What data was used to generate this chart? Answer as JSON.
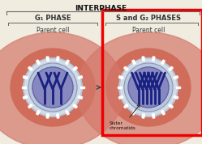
{
  "title": "INTERPHASE",
  "left_phase_title": "G₁ PHASE",
  "right_phase_title": "S and G₂ PHASES",
  "left_label": "Parent cell",
  "right_label": "Parent cell",
  "annotation_text": "Sister\nchromatids",
  "bg_color": "#f0ece0",
  "cell_outer_color": "#c85535",
  "cell_outer_edge_color": "#a03020",
  "cell_mid_color": "#d4786a",
  "cell_ring_color": "#b8c4d4",
  "cell_ring_fill": "#d0dce8",
  "cell_inner_fill": "#c0cce0",
  "nucleus_color": "#8888c0",
  "nucleus_edge_color": "#6060a0",
  "chromatid_color": "#182080",
  "red_box_color": "#ee0000",
  "title_color": "#111111",
  "label_color": "#333333",
  "arrow_color": "#444444",
  "bracket_color": "#666666",
  "npc_color": "#e0e8f0",
  "fig_w": 2.49,
  "fig_h": 1.78,
  "dpi": 100
}
